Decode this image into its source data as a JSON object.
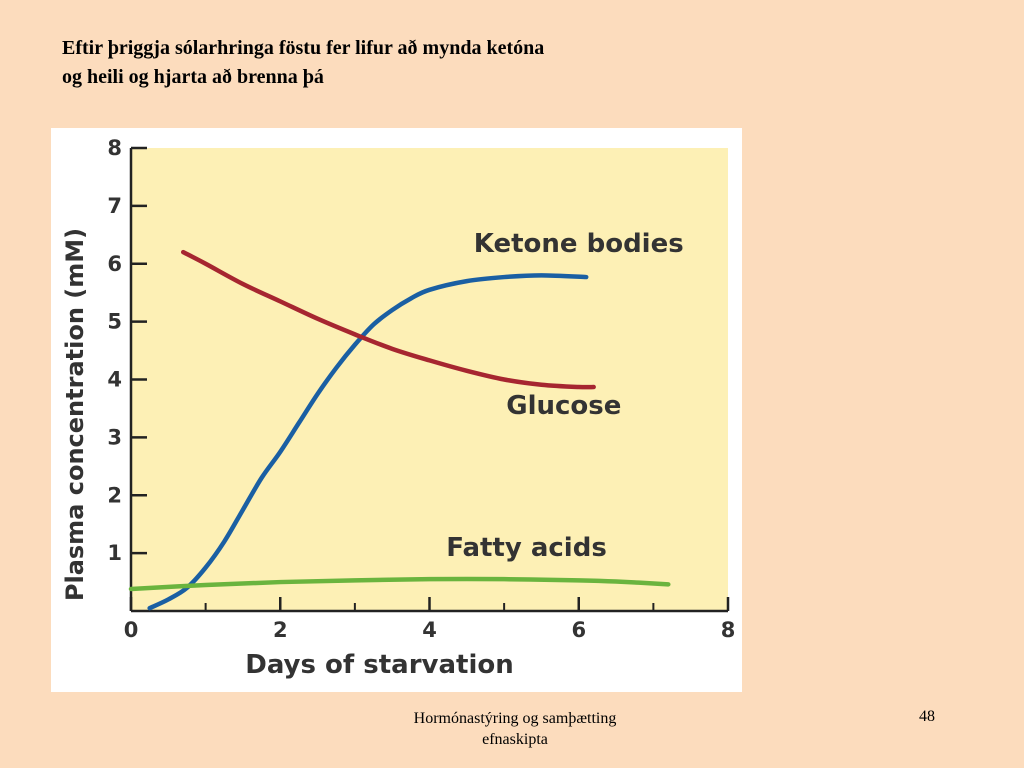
{
  "slide": {
    "title_lines": [
      "Eftir þriggja sólarhringa föstu fer lifur að mynda ketóna",
      "og heili og hjarta að brenna þá"
    ],
    "footer_lines": [
      "Hormónastýring og samþætting",
      "efnaskipta"
    ],
    "page_number": "48"
  },
  "colors": {
    "slide_background": "#fcdcbd",
    "plot_background": "#fdf0b5",
    "ketone_bodies": "#1a5fa3",
    "glucose": "#a62630",
    "fatty_acids": "#6ab43e",
    "axis": "#222222",
    "text": "#333333"
  },
  "chart_data": {
    "type": "line",
    "title": "",
    "xlabel": "Days of starvation",
    "ylabel": "Plasma concentration (mM)",
    "xlim": [
      0,
      8
    ],
    "ylim": [
      0,
      8
    ],
    "x_ticks": [
      0,
      2,
      4,
      6,
      8
    ],
    "y_ticks": [
      1,
      2,
      3,
      4,
      5,
      6,
      7,
      8
    ],
    "grid": false,
    "series": [
      {
        "name": "Ketone bodies",
        "color_key": "ketone_bodies",
        "points": [
          [
            0.25,
            0.05
          ],
          [
            0.5,
            0.2
          ],
          [
            0.75,
            0.4
          ],
          [
            1.0,
            0.75
          ],
          [
            1.25,
            1.2
          ],
          [
            1.5,
            1.75
          ],
          [
            1.75,
            2.3
          ],
          [
            2.0,
            2.75
          ],
          [
            2.25,
            3.25
          ],
          [
            2.5,
            3.75
          ],
          [
            2.75,
            4.2
          ],
          [
            3.0,
            4.6
          ],
          [
            3.25,
            4.95
          ],
          [
            3.5,
            5.2
          ],
          [
            3.75,
            5.4
          ],
          [
            4.0,
            5.55
          ],
          [
            4.5,
            5.7
          ],
          [
            5.0,
            5.77
          ],
          [
            5.5,
            5.8
          ],
          [
            6.1,
            5.77
          ]
        ],
        "label_at": [
          6.0,
          6.2
        ]
      },
      {
        "name": "Glucose",
        "color_key": "glucose",
        "points": [
          [
            0.7,
            6.2
          ],
          [
            1.0,
            6.0
          ],
          [
            1.5,
            5.65
          ],
          [
            2.0,
            5.35
          ],
          [
            2.5,
            5.05
          ],
          [
            3.0,
            4.78
          ],
          [
            3.5,
            4.53
          ],
          [
            4.0,
            4.33
          ],
          [
            4.5,
            4.15
          ],
          [
            5.0,
            4.0
          ],
          [
            5.5,
            3.91
          ],
          [
            6.0,
            3.87
          ],
          [
            6.2,
            3.87
          ]
        ],
        "label_at": [
          5.8,
          3.4
        ]
      },
      {
        "name": "Fatty acids",
        "color_key": "fatty_acids",
        "points": [
          [
            0.0,
            0.38
          ],
          [
            1.0,
            0.45
          ],
          [
            2.0,
            0.5
          ],
          [
            3.0,
            0.53
          ],
          [
            4.0,
            0.55
          ],
          [
            5.0,
            0.55
          ],
          [
            6.0,
            0.53
          ],
          [
            6.5,
            0.51
          ],
          [
            7.2,
            0.46
          ]
        ],
        "label_at": [
          5.3,
          0.95
        ]
      }
    ]
  }
}
